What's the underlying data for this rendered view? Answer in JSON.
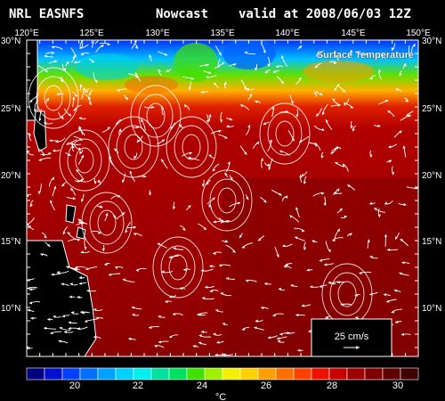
{
  "header": {
    "left": "NRL EASNFS",
    "middle": "Nowcast",
    "right": "valid at 2008/06/03 12Z"
  },
  "map": {
    "field_label": "Surface Temperature",
    "lon_ticks": [
      "120°E",
      "125°E",
      "130°E",
      "135°E",
      "140°E",
      "145°E",
      "150°E"
    ],
    "lat_ticks_left": [
      "30°N",
      "25°N",
      "20°N",
      "15°N",
      "10°N"
    ],
    "lat_ticks_right": [
      "30°N",
      "25°N",
      "20°N",
      "15°N",
      "10°N"
    ],
    "vector_legend": {
      "label": "25 cm/s"
    }
  },
  "colorbar": {
    "unit": "°C",
    "tick_labels": [
      "20",
      "22",
      "24",
      "26",
      "28",
      "30"
    ],
    "colors": [
      "#000080",
      "#0010d0",
      "#0040ff",
      "#0070ff",
      "#00a0ff",
      "#00d0ff",
      "#00f0f0",
      "#00e0a0",
      "#00e060",
      "#40e000",
      "#a0f000",
      "#f0f000",
      "#ffd000",
      "#ffa000",
      "#ff7000",
      "#ff4000",
      "#f01000",
      "#c80000",
      "#a00000",
      "#800000",
      "#600000",
      "#400000"
    ]
  }
}
